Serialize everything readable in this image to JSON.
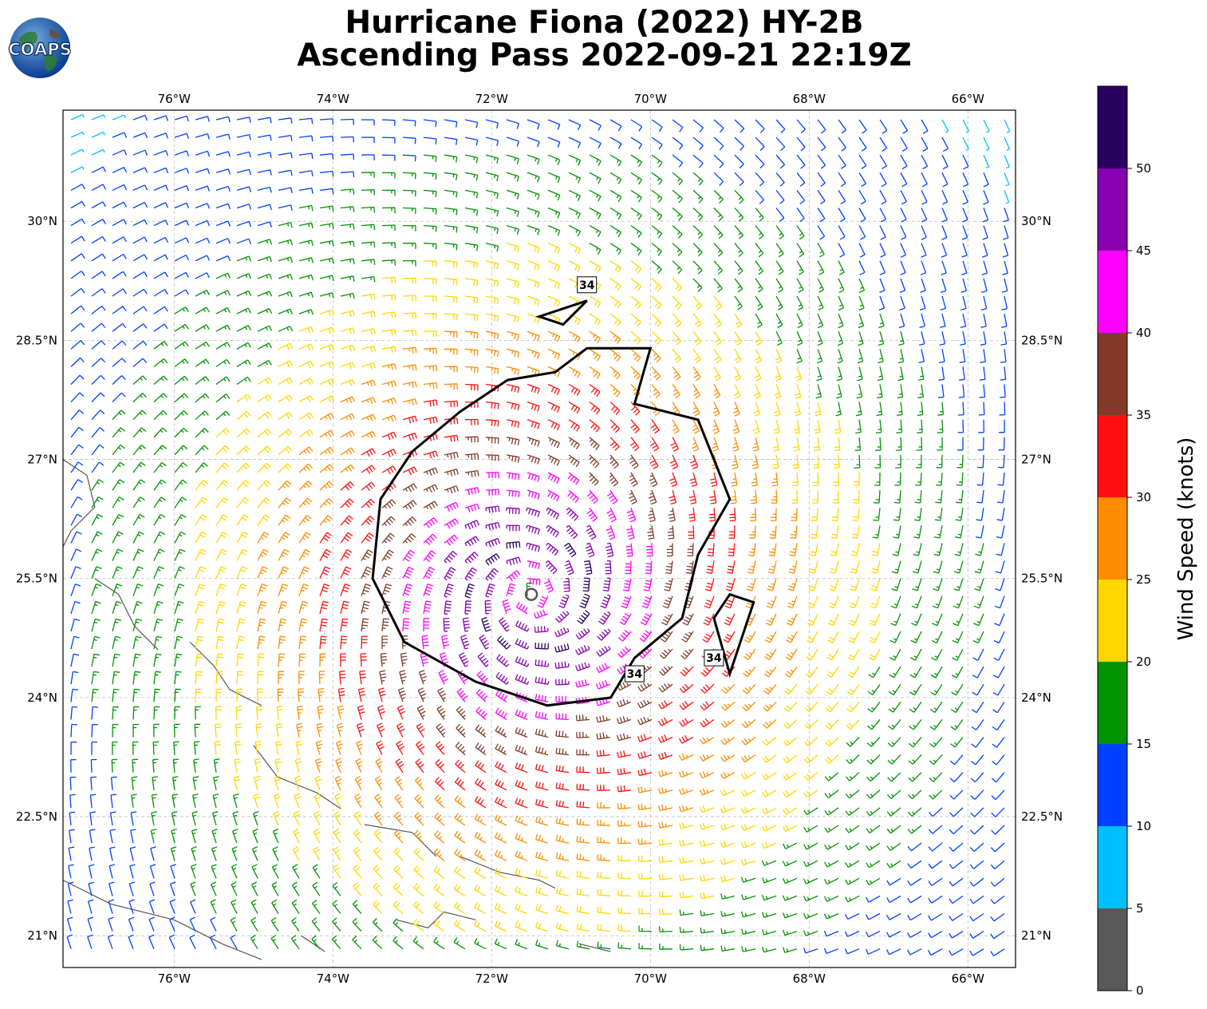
{
  "title": {
    "line1": "Hurricane Fiona (2022) HY-2B",
    "line2": "Ascending Pass 2022-09-21 22:19Z"
  },
  "logo": {
    "text": "COAPS",
    "icon": "globe-logo-icon"
  },
  "map": {
    "lon_range": [
      -77.4,
      -65.4
    ],
    "lat_range": [
      20.6,
      31.4
    ],
    "lon_ticks": [
      {
        "value": -76,
        "label": "76°W"
      },
      {
        "value": -74,
        "label": "74°W"
      },
      {
        "value": -72,
        "label": "72°W"
      },
      {
        "value": -70,
        "label": "70°W"
      },
      {
        "value": -68,
        "label": "68°W"
      },
      {
        "value": -66,
        "label": "66°W"
      }
    ],
    "lat_ticks": [
      {
        "value": 30,
        "label": "30°N"
      },
      {
        "value": 28.5,
        "label": "28.5°N"
      },
      {
        "value": 27,
        "label": "27°N"
      },
      {
        "value": 25.5,
        "label": "25.5°N"
      },
      {
        "value": 24,
        "label": "24°N"
      },
      {
        "value": 22.5,
        "label": "22.5°N"
      },
      {
        "value": 21,
        "label": "21°N"
      }
    ],
    "grid": true,
    "storm_center": {
      "lon": -71.5,
      "lat": 25.3
    },
    "contour_value": 34,
    "contour_labels": [
      "34",
      "34",
      "34"
    ]
  },
  "colorbar": {
    "label": "Wind Speed (knots)",
    "bins": [
      {
        "from": 0,
        "to": 5,
        "color": "#595959"
      },
      {
        "from": 5,
        "to": 10,
        "color": "#00bfff"
      },
      {
        "from": 10,
        "to": 15,
        "color": "#0040ff"
      },
      {
        "from": 15,
        "to": 20,
        "color": "#009400"
      },
      {
        "from": 20,
        "to": 25,
        "color": "#ffd700"
      },
      {
        "from": 25,
        "to": 30,
        "color": "#ff8c00"
      },
      {
        "from": 30,
        "to": 35,
        "color": "#ff0f0f"
      },
      {
        "from": 35,
        "to": 40,
        "color": "#803c28"
      },
      {
        "from": 40,
        "to": 45,
        "color": "#ff00ff"
      },
      {
        "from": 45,
        "to": 50,
        "color": "#8800b0"
      },
      {
        "from": 50,
        "to": 55,
        "color": "#2a0060"
      }
    ],
    "tick_labels": [
      "0",
      "5",
      "10",
      "15",
      "20",
      "25",
      "30",
      "35",
      "40",
      "45",
      "50"
    ]
  }
}
